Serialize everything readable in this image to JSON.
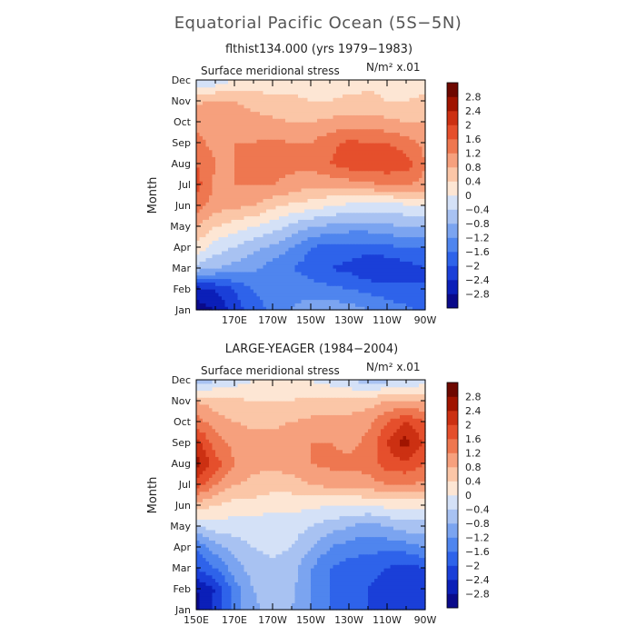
{
  "figure": {
    "title": "Equatorial Pacific Ocean (5S−5N)"
  },
  "chart_data": [
    {
      "type": "heatmap",
      "title": "flthist134.000 (yrs 1979−1983)",
      "variable_label": "Surface meridional stress",
      "units_label": "N/m² x.01",
      "ylabel": "Month",
      "y_categories": [
        "Jan",
        "Feb",
        "Mar",
        "Apr",
        "May",
        "Jun",
        "Jul",
        "Aug",
        "Sep",
        "Oct",
        "Nov",
        "Dec"
      ],
      "x_tick_labels": [
        "170E",
        "170W",
        "150W",
        "130W",
        "110W",
        "90W"
      ],
      "xlim": [
        150,
        270
      ],
      "x_values": [
        150,
        160,
        170,
        180,
        190,
        200,
        210,
        220,
        230,
        240,
        250,
        260,
        270
      ],
      "z": [
        [
          -3.0,
          -2.8,
          -2.2,
          -1.8,
          -1.5,
          -1.2,
          -1.0,
          -0.9,
          -1.0,
          -1.2,
          -1.4,
          -1.5,
          -1.7
        ],
        [
          -2.6,
          -2.4,
          -2.0,
          -1.6,
          -1.4,
          -1.3,
          -1.4,
          -1.5,
          -1.6,
          -1.7,
          -1.8,
          -1.9,
          -2.0
        ],
        [
          -0.6,
          -0.8,
          -1.0,
          -1.1,
          -1.4,
          -1.6,
          -1.8,
          -2.0,
          -2.1,
          -2.4,
          -2.4,
          -2.2,
          -2.0
        ],
        [
          0.3,
          -0.2,
          -0.4,
          -0.7,
          -0.9,
          -1.2,
          -1.6,
          -1.8,
          -1.8,
          -1.8,
          -1.7,
          -1.6,
          -1.6
        ],
        [
          0.8,
          0.4,
          0.2,
          0.0,
          -0.2,
          -0.5,
          -0.8,
          -0.9,
          -1.0,
          -1.0,
          -0.9,
          -0.8,
          -0.8
        ],
        [
          1.4,
          1.0,
          0.9,
          0.8,
          0.5,
          0.3,
          0.2,
          0.0,
          -0.1,
          -0.2,
          -0.2,
          -0.1,
          -0.1
        ],
        [
          1.8,
          1.1,
          1.2,
          1.2,
          1.2,
          1.1,
          0.9,
          0.9,
          1.0,
          1.1,
          1.2,
          1.2,
          1.1
        ],
        [
          1.6,
          1.2,
          1.2,
          1.3,
          1.3,
          1.3,
          1.3,
          1.6,
          1.8,
          1.8,
          1.9,
          1.8,
          1.2
        ],
        [
          1.3,
          1.1,
          1.2,
          1.2,
          1.3,
          1.2,
          1.2,
          1.5,
          1.7,
          1.6,
          1.6,
          1.4,
          1.1
        ],
        [
          1.1,
          1.2,
          1.1,
          1.0,
          0.9,
          0.8,
          0.8,
          0.9,
          1.0,
          1.0,
          0.9,
          0.8,
          0.8
        ],
        [
          0.7,
          0.9,
          0.8,
          0.6,
          0.5,
          0.5,
          0.4,
          0.4,
          0.5,
          0.5,
          0.4,
          0.4,
          0.5
        ],
        [
          -0.5,
          -0.3,
          0.0,
          0.2,
          0.2,
          0.2,
          0.2,
          0.2,
          0.2,
          0.3,
          0.3,
          0.2,
          0.2
        ]
      ],
      "contour_levels": [
        -2.8,
        -2.4,
        -2.0,
        -1.6,
        -1.2,
        -0.8,
        -0.4,
        0,
        0.4,
        0.8,
        1.2,
        1.6,
        2.0,
        2.4,
        2.8
      ]
    },
    {
      "type": "heatmap",
      "title": "LARGE-YEAGER (1984−2004)",
      "variable_label": "Surface meridional stress",
      "units_label": "N/m² x.01",
      "ylabel": "Month",
      "y_categories": [
        "Jan",
        "Feb",
        "Mar",
        "Apr",
        "May",
        "Jun",
        "Jul",
        "Aug",
        "Sep",
        "Oct",
        "Nov",
        "Dec"
      ],
      "x_tick_labels": [
        "150E",
        "170E",
        "170W",
        "150W",
        "130W",
        "110W",
        "90W"
      ],
      "xlim": [
        150,
        270
      ],
      "x_values": [
        150,
        160,
        170,
        180,
        190,
        200,
        210,
        220,
        230,
        240,
        250,
        260,
        270
      ],
      "z": [
        [
          -3.0,
          -2.2,
          -1.4,
          -0.9,
          -0.6,
          -0.8,
          -1.2,
          -1.6,
          -1.8,
          -2.0,
          -2.1,
          -2.2,
          -2.0
        ],
        [
          -2.8,
          -2.4,
          -1.4,
          -0.8,
          -0.6,
          -0.7,
          -1.2,
          -1.6,
          -1.8,
          -2.0,
          -2.3,
          -2.4,
          -2.2
        ],
        [
          -2.0,
          -1.6,
          -1.0,
          -0.6,
          -0.5,
          -0.6,
          -1.2,
          -1.6,
          -1.8,
          -1.8,
          -2.0,
          -2.2,
          -2.0
        ],
        [
          -1.6,
          -1.0,
          -0.6,
          -0.4,
          -0.3,
          -0.4,
          -0.8,
          -1.2,
          -1.4,
          -1.5,
          -1.5,
          -1.4,
          -1.2
        ],
        [
          -0.4,
          -0.2,
          -0.2,
          -0.2,
          -0.2,
          -0.2,
          -0.4,
          -0.6,
          -0.8,
          -1.0,
          -0.8,
          -0.6,
          -0.6
        ],
        [
          0.6,
          0.4,
          0.2,
          0.2,
          0.1,
          0.1,
          0.1,
          0.0,
          0.0,
          0.0,
          0.1,
          0.1,
          0.1
        ],
        [
          1.8,
          1.2,
          0.8,
          0.7,
          0.6,
          0.6,
          0.8,
          0.9,
          0.9,
          1.0,
          1.2,
          1.2,
          1.1
        ],
        [
          2.6,
          1.8,
          1.2,
          0.9,
          0.9,
          1.0,
          1.2,
          1.3,
          1.3,
          1.4,
          1.8,
          1.9,
          1.6
        ],
        [
          2.2,
          1.4,
          1.1,
          1.0,
          1.0,
          1.1,
          1.2,
          1.2,
          1.1,
          1.3,
          2.0,
          2.6,
          1.9
        ],
        [
          1.4,
          1.0,
          0.8,
          0.7,
          0.7,
          0.8,
          0.9,
          0.9,
          0.9,
          1.1,
          1.6,
          2.0,
          1.6
        ],
        [
          0.8,
          0.6,
          0.5,
          0.4,
          0.4,
          0.4,
          0.5,
          0.6,
          0.6,
          0.6,
          0.8,
          0.9,
          0.8
        ],
        [
          -0.8,
          -0.4,
          -0.2,
          0.0,
          0.2,
          0.2,
          0.0,
          -0.2,
          -0.4,
          -0.6,
          -0.5,
          -0.4,
          -0.2
        ]
      ],
      "contour_levels": [
        -2.8,
        -2.4,
        -2.0,
        -1.6,
        -1.2,
        -0.8,
        -0.4,
        0,
        0.4,
        0.8,
        1.2,
        1.6,
        2.0,
        2.4,
        2.8
      ]
    }
  ],
  "colorbar": {
    "labels": [
      "2.8",
      "2.4",
      "2",
      "1.6",
      "1.2",
      "0.8",
      "0.4",
      "0",
      "−0.4",
      "−0.8",
      "−1.2",
      "−1.6",
      "−2",
      "−2.4",
      "−2.8"
    ],
    "colors_bottom_to_top": [
      "#0a0a8a",
      "#0b1fb8",
      "#1a3fd8",
      "#2e63ea",
      "#4f85ee",
      "#7ba4f0",
      "#a8c2f2",
      "#d4e1f7",
      "#fde6d4",
      "#fbc6a7",
      "#f6a07d",
      "#ee7750",
      "#e54f2c",
      "#cc3012",
      "#a01400",
      "#6e0800"
    ]
  }
}
